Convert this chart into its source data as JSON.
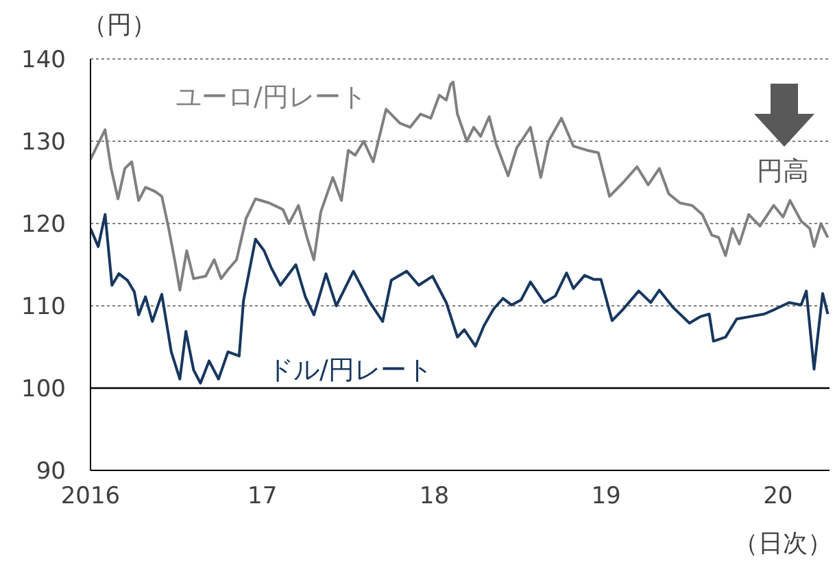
{
  "chart_data": {
    "type": "line",
    "ylabel": "（円）",
    "xlabel": "（日次）",
    "annotations": [
      "円高"
    ],
    "xlim": [
      2016,
      2020.3
    ],
    "xticks": [
      {
        "value": 2016,
        "label": "2016"
      },
      {
        "value": 2017,
        "label": "17"
      },
      {
        "value": 2018,
        "label": "18"
      },
      {
        "value": 2019,
        "label": "19"
      },
      {
        "value": 2020,
        "label": "20"
      }
    ],
    "ylim": [
      90,
      140
    ],
    "yticks": [
      90,
      100,
      110,
      120,
      130,
      140
    ],
    "grid": "y",
    "legend": false,
    "marker": "none",
    "line_style": "solid",
    "ref_lines": [
      {
        "axis": "y",
        "value": 100,
        "label": null,
        "color": "#000000",
        "line_style": "solid"
      }
    ],
    "series": [
      {
        "name": "ユーロ/円レート",
        "color": "#808080",
        "x": [
          2016,
          2016.085,
          2016.12,
          2016.16,
          2016.2,
          2016.24,
          2016.28,
          2016.32,
          2016.375,
          2016.415,
          2016.455,
          2016.495,
          2016.52,
          2016.56,
          2016.6,
          2016.67,
          2016.72,
          2016.76,
          2016.8,
          2016.85,
          2016.905,
          2016.96,
          2017.04,
          2017.12,
          2017.155,
          2017.21,
          2017.26,
          2017.3,
          2017.34,
          2017.41,
          2017.46,
          2017.5,
          2017.54,
          2017.59,
          2017.645,
          2017.72,
          2017.8,
          2017.86,
          2017.92,
          2017.98,
          2018.03,
          2018.07,
          2018.095,
          2018.11,
          2018.135,
          2018.19,
          2018.23,
          2018.27,
          2018.32,
          2018.36,
          2018.43,
          2018.48,
          2018.56,
          2018.62,
          2018.665,
          2018.74,
          2018.81,
          2018.89,
          2018.955,
          2019.02,
          2019.1,
          2019.18,
          2019.245,
          2019.31,
          2019.365,
          2019.43,
          2019.5,
          2019.56,
          2019.615,
          2019.655,
          2019.695,
          2019.735,
          2019.775,
          2019.83,
          2019.895,
          2019.975,
          2020.03,
          2020.07,
          2020.135,
          2020.185,
          2020.21,
          2020.25,
          2020.29
        ],
        "values": [
          127.8,
          131.4,
          126.7,
          123,
          126.7,
          127.5,
          122.8,
          124.4,
          123.9,
          123.3,
          119.4,
          115,
          111.9,
          116.7,
          113.3,
          113.6,
          115.6,
          113.3,
          114.4,
          115.6,
          120.6,
          123,
          122.5,
          121.7,
          120,
          122.2,
          118.3,
          115.6,
          121.4,
          125.6,
          122.8,
          128.9,
          128.3,
          130,
          127.5,
          133.9,
          132.2,
          131.7,
          133.3,
          132.8,
          135.6,
          135,
          136.9,
          137.2,
          133.3,
          130,
          131.7,
          130.6,
          133,
          129.7,
          125.8,
          129.2,
          131.7,
          125.6,
          130,
          132.8,
          129.4,
          128.9,
          128.6,
          123.3,
          125,
          126.9,
          124.7,
          126.7,
          123.6,
          122.5,
          122.2,
          121.1,
          118.6,
          118.3,
          116.1,
          119.4,
          117.5,
          121.1,
          119.7,
          122.2,
          120.8,
          122.8,
          120.3,
          119.4,
          117.2,
          120,
          118.3
        ]
      },
      {
        "name": "ドル/円レート",
        "color": "#17375e",
        "x": [
          2016,
          2016.045,
          2016.085,
          2016.125,
          2016.165,
          2016.215,
          2016.255,
          2016.28,
          2016.32,
          2016.36,
          2016.415,
          2016.47,
          2016.52,
          2016.555,
          2016.6,
          2016.64,
          2016.69,
          2016.745,
          2016.8,
          2016.865,
          2016.89,
          2016.96,
          2017.01,
          2017.05,
          2017.105,
          2017.155,
          2017.195,
          2017.25,
          2017.3,
          2017.37,
          2017.43,
          2017.53,
          2017.62,
          2017.7,
          2017.75,
          2017.84,
          2017.91,
          2017.99,
          2018.07,
          2018.135,
          2018.175,
          2018.24,
          2018.29,
          2018.345,
          2018.4,
          2018.45,
          2018.505,
          2018.56,
          2018.64,
          2018.705,
          2018.77,
          2018.81,
          2018.875,
          2018.93,
          2018.97,
          2019.035,
          2019.1,
          2019.19,
          2019.26,
          2019.31,
          2019.39,
          2019.485,
          2019.55,
          2019.6,
          2019.625,
          2019.695,
          2019.76,
          2019.84,
          2019.92,
          2019.985,
          2020.065,
          2020.135,
          2020.165,
          2020.21,
          2020.26,
          2020.29
        ],
        "values": [
          119.4,
          117.2,
          121.1,
          112.5,
          113.9,
          113.1,
          111.7,
          108.9,
          111.1,
          108.1,
          111.4,
          104.4,
          101.1,
          106.9,
          102.2,
          100.6,
          103.3,
          101.1,
          104.4,
          103.9,
          110.6,
          118.1,
          116.7,
          114.7,
          112.5,
          113.9,
          115,
          111.1,
          108.9,
          113.9,
          110,
          114.2,
          110.6,
          108.1,
          113.1,
          114.2,
          112.5,
          113.6,
          110.4,
          106.2,
          107.1,
          105.1,
          107.6,
          109.6,
          110.9,
          110.1,
          110.7,
          112.9,
          110.4,
          111.2,
          114,
          112.1,
          113.7,
          113.2,
          113.2,
          108.2,
          109.6,
          111.8,
          110.4,
          111.9,
          109.8,
          107.9,
          108.7,
          109,
          105.7,
          106.2,
          108.4,
          108.7,
          109,
          109.6,
          110.4,
          110.1,
          111.8,
          102.3,
          111.5,
          109
        ]
      }
    ]
  }
}
